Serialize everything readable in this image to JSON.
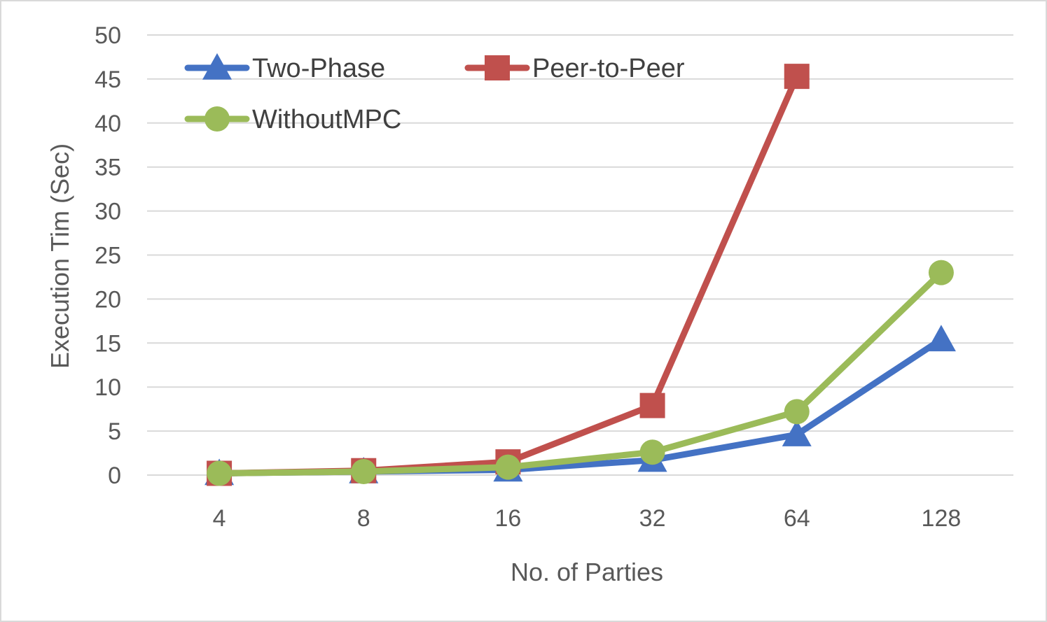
{
  "chart_data": {
    "type": "line",
    "title": "",
    "xlabel": "No. of Parties",
    "ylabel": "Execution Tim (Sec)",
    "categories": [
      "4",
      "8",
      "16",
      "32",
      "64",
      "128"
    ],
    "ylim": [
      0,
      50
    ],
    "yticks": [
      0,
      5,
      10,
      15,
      20,
      25,
      30,
      35,
      40,
      45,
      50
    ],
    "grid": true,
    "legend": "top-left",
    "series": [
      {
        "name": "Two-Phase",
        "color": "#4472c4",
        "marker": "triangle",
        "values": [
          0.2,
          0.4,
          0.6,
          1.7,
          4.6,
          15.4
        ]
      },
      {
        "name": "Peer-to-Peer",
        "color": "#c0504d",
        "marker": "square",
        "values": [
          0.2,
          0.5,
          1.5,
          7.9,
          45.3,
          null
        ]
      },
      {
        "name": "WithoutMPC",
        "color": "#9bbb59",
        "marker": "circle",
        "values": [
          0.2,
          0.4,
          0.9,
          2.6,
          7.2,
          23.0
        ]
      }
    ]
  }
}
